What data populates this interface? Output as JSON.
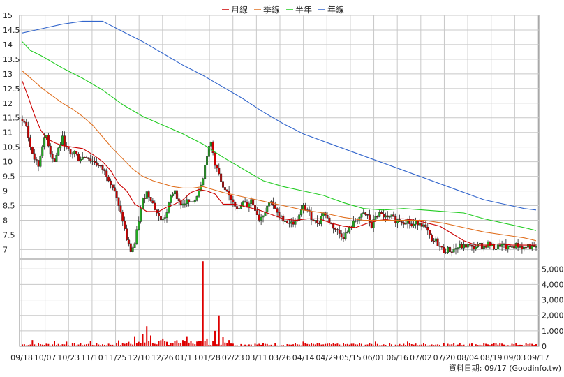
{
  "chart_data": {
    "type": "candlestick",
    "legend": [
      {
        "label": "月線",
        "color": "#cc0000"
      },
      {
        "label": "季線",
        "color": "#e07020"
      },
      {
        "label": "半年",
        "color": "#22cc22"
      },
      {
        "label": "年線",
        "color": "#3366cc"
      }
    ],
    "legend_position": "top",
    "price_ticks": [
      "15",
      "14.5",
      "14",
      "13.5",
      "13",
      "12.5",
      "12",
      "11.5",
      "11",
      "10.5",
      "10",
      "9.5",
      "9",
      "8.5",
      "8",
      "7.5",
      "7"
    ],
    "price_range": [
      6.7,
      15
    ],
    "volume_ticks": [
      "5,000",
      "4,000",
      "3,000",
      "2,000",
      "1,000",
      "0"
    ],
    "volume_range": [
      0,
      5600
    ],
    "x_ticks": [
      "09/18",
      "10/07",
      "10/23",
      "11/10",
      "11/25",
      "12/10",
      "12/26",
      "01/13",
      "01/28",
      "02/23",
      "03/11",
      "03/26",
      "04/14",
      "04/29",
      "05/15",
      "06/01",
      "06/16",
      "07/02",
      "07/20",
      "08/04",
      "08/19",
      "09/03",
      "09/17"
    ],
    "grid": true,
    "footer": "資料日期: 09/17  (Goodinfo.tw)",
    "colors": {
      "up": "#22aa22",
      "down": "#cc0000",
      "volume": "#dd0000",
      "grid": "#c8c8c8"
    },
    "moving_averages": {
      "月線": [
        [
          0,
          12.75
        ],
        [
          3,
          12.2
        ],
        [
          6,
          11.6
        ],
        [
          9,
          11.1
        ],
        [
          12,
          10.8
        ],
        [
          16,
          10.65
        ],
        [
          20,
          10.55
        ],
        [
          25,
          10.5
        ],
        [
          30,
          10.45
        ],
        [
          35,
          10.25
        ],
        [
          40,
          10.0
        ],
        [
          44,
          9.7
        ],
        [
          48,
          9.25
        ],
        [
          52,
          9.0
        ],
        [
          56,
          8.55
        ],
        [
          62,
          8.3
        ],
        [
          68,
          8.3
        ],
        [
          72,
          8.45
        ],
        [
          76,
          8.55
        ],
        [
          80,
          8.7
        ],
        [
          84,
          8.95
        ],
        [
          88,
          9.05
        ],
        [
          92,
          9.0
        ],
        [
          96,
          8.9
        ],
        [
          100,
          8.55
        ],
        [
          106,
          8.55
        ],
        [
          112,
          8.45
        ],
        [
          118,
          8.35
        ],
        [
          124,
          8.2
        ],
        [
          130,
          8.05
        ],
        [
          136,
          8.0
        ],
        [
          142,
          8.05
        ],
        [
          148,
          8.05
        ],
        [
          154,
          7.9
        ],
        [
          160,
          7.8
        ],
        [
          166,
          7.75
        ],
        [
          172,
          7.9
        ],
        [
          178,
          8.0
        ],
        [
          184,
          8.05
        ],
        [
          190,
          8.05
        ],
        [
          196,
          8.0
        ],
        [
          202,
          7.9
        ],
        [
          208,
          7.8
        ],
        [
          214,
          7.55
        ],
        [
          220,
          7.3
        ],
        [
          226,
          7.15
        ],
        [
          232,
          7.15
        ],
        [
          238,
          7.2
        ],
        [
          244,
          7.15
        ],
        [
          250,
          7.15
        ],
        [
          256,
          7.15
        ]
      ],
      "季線": [
        [
          0,
          13.1
        ],
        [
          5,
          12.8
        ],
        [
          10,
          12.5
        ],
        [
          15,
          12.25
        ],
        [
          20,
          12.0
        ],
        [
          25,
          11.8
        ],
        [
          30,
          11.55
        ],
        [
          35,
          11.25
        ],
        [
          40,
          10.85
        ],
        [
          45,
          10.45
        ],
        [
          50,
          10.1
        ],
        [
          55,
          9.75
        ],
        [
          60,
          9.5
        ],
        [
          65,
          9.35
        ],
        [
          70,
          9.25
        ],
        [
          75,
          9.15
        ],
        [
          80,
          9.1
        ],
        [
          85,
          9.1
        ],
        [
          90,
          9.15
        ],
        [
          95,
          9.05
        ],
        [
          100,
          8.95
        ],
        [
          110,
          8.8
        ],
        [
          120,
          8.65
        ],
        [
          130,
          8.5
        ],
        [
          140,
          8.35
        ],
        [
          150,
          8.25
        ],
        [
          160,
          8.1
        ],
        [
          170,
          8.0
        ],
        [
          180,
          8.0
        ],
        [
          190,
          8.0
        ],
        [
          200,
          8.0
        ],
        [
          210,
          7.9
        ],
        [
          220,
          7.75
        ],
        [
          230,
          7.6
        ],
        [
          240,
          7.5
        ],
        [
          250,
          7.4
        ],
        [
          256,
          7.3
        ]
      ],
      "半年": [
        [
          0,
          14.1
        ],
        [
          4,
          13.8
        ],
        [
          10,
          13.6
        ],
        [
          20,
          13.2
        ],
        [
          30,
          12.85
        ],
        [
          40,
          12.45
        ],
        [
          50,
          11.95
        ],
        [
          60,
          11.55
        ],
        [
          70,
          11.25
        ],
        [
          80,
          10.95
        ],
        [
          90,
          10.6
        ],
        [
          100,
          10.15
        ],
        [
          110,
          9.75
        ],
        [
          120,
          9.35
        ],
        [
          130,
          9.15
        ],
        [
          140,
          9.0
        ],
        [
          150,
          8.85
        ],
        [
          160,
          8.6
        ],
        [
          170,
          8.4
        ],
        [
          180,
          8.35
        ],
        [
          190,
          8.4
        ],
        [
          200,
          8.35
        ],
        [
          210,
          8.3
        ],
        [
          220,
          8.25
        ],
        [
          230,
          8.05
        ],
        [
          240,
          7.9
        ],
        [
          250,
          7.75
        ],
        [
          256,
          7.65
        ]
      ],
      "年線": [
        [
          0,
          14.4
        ],
        [
          10,
          14.55
        ],
        [
          20,
          14.7
        ],
        [
          30,
          14.8
        ],
        [
          40,
          14.8
        ],
        [
          50,
          14.45
        ],
        [
          60,
          14.1
        ],
        [
          70,
          13.7
        ],
        [
          80,
          13.3
        ],
        [
          90,
          12.95
        ],
        [
          100,
          12.55
        ],
        [
          110,
          12.15
        ],
        [
          120,
          11.7
        ],
        [
          130,
          11.3
        ],
        [
          140,
          10.95
        ],
        [
          150,
          10.7
        ],
        [
          160,
          10.45
        ],
        [
          170,
          10.2
        ],
        [
          180,
          9.95
        ],
        [
          190,
          9.7
        ],
        [
          200,
          9.45
        ],
        [
          210,
          9.2
        ],
        [
          220,
          8.95
        ],
        [
          230,
          8.7
        ],
        [
          240,
          8.55
        ],
        [
          250,
          8.4
        ],
        [
          256,
          8.35
        ]
      ]
    },
    "price_path": [
      [
        0,
        11.45
      ],
      [
        2,
        11.2
      ],
      [
        4,
        10.5
      ],
      [
        6,
        10.1
      ],
      [
        8,
        9.85
      ],
      [
        10,
        10.6
      ],
      [
        12,
        10.9
      ],
      [
        14,
        10.3
      ],
      [
        16,
        10.0
      ],
      [
        18,
        10.45
      ],
      [
        20,
        10.8
      ],
      [
        22,
        10.45
      ],
      [
        24,
        10.25
      ],
      [
        26,
        10.35
      ],
      [
        28,
        10.1
      ],
      [
        30,
        10.15
      ],
      [
        32,
        10.2
      ],
      [
        34,
        10.05
      ],
      [
        36,
        10.0
      ],
      [
        38,
        9.85
      ],
      [
        40,
        9.75
      ],
      [
        42,
        9.55
      ],
      [
        44,
        9.3
      ],
      [
        46,
        9.0
      ],
      [
        48,
        8.45
      ],
      [
        50,
        8.0
      ],
      [
        52,
        7.35
      ],
      [
        54,
        6.95
      ],
      [
        56,
        7.2
      ],
      [
        58,
        8.0
      ],
      [
        60,
        8.7
      ],
      [
        62,
        8.95
      ],
      [
        64,
        8.75
      ],
      [
        66,
        8.4
      ],
      [
        68,
        8.1
      ],
      [
        70,
        8.0
      ],
      [
        72,
        8.25
      ],
      [
        74,
        8.8
      ],
      [
        76,
        9.05
      ],
      [
        78,
        8.6
      ],
      [
        80,
        8.55
      ],
      [
        82,
        8.65
      ],
      [
        84,
        8.55
      ],
      [
        86,
        8.7
      ],
      [
        88,
        9.05
      ],
      [
        90,
        9.5
      ],
      [
        92,
        10.25
      ],
      [
        94,
        10.65
      ],
      [
        96,
        9.95
      ],
      [
        98,
        9.55
      ],
      [
        100,
        9.05
      ],
      [
        102,
        8.9
      ],
      [
        104,
        8.75
      ],
      [
        106,
        8.55
      ],
      [
        108,
        8.35
      ],
      [
        110,
        8.6
      ],
      [
        112,
        8.5
      ],
      [
        114,
        8.7
      ],
      [
        116,
        8.4
      ],
      [
        118,
        8.05
      ],
      [
        120,
        8.2
      ],
      [
        122,
        8.5
      ],
      [
        124,
        8.7
      ],
      [
        126,
        8.35
      ],
      [
        128,
        8.1
      ],
      [
        130,
        8.05
      ],
      [
        132,
        7.95
      ],
      [
        134,
        7.9
      ],
      [
        136,
        7.95
      ],
      [
        138,
        8.15
      ],
      [
        140,
        8.45
      ],
      [
        142,
        8.35
      ],
      [
        144,
        8.1
      ],
      [
        146,
        7.95
      ],
      [
        148,
        7.95
      ],
      [
        150,
        8.3
      ],
      [
        152,
        8.05
      ],
      [
        154,
        7.85
      ],
      [
        156,
        7.7
      ],
      [
        158,
        7.55
      ],
      [
        160,
        7.45
      ],
      [
        162,
        7.6
      ],
      [
        164,
        7.8
      ],
      [
        166,
        8.0
      ],
      [
        168,
        8.1
      ],
      [
        170,
        8.2
      ],
      [
        172,
        8.15
      ],
      [
        174,
        7.75
      ],
      [
        176,
        8.15
      ],
      [
        178,
        8.2
      ],
      [
        180,
        8.15
      ],
      [
        182,
        8.05
      ],
      [
        184,
        8.1
      ],
      [
        186,
        8.0
      ],
      [
        188,
        8.0
      ],
      [
        190,
        7.95
      ],
      [
        192,
        8.0
      ],
      [
        194,
        7.8
      ],
      [
        196,
        7.9
      ],
      [
        198,
        7.95
      ],
      [
        200,
        7.8
      ],
      [
        202,
        7.6
      ],
      [
        204,
        7.25
      ],
      [
        206,
        7.3
      ],
      [
        208,
        7.1
      ],
      [
        210,
        6.95
      ],
      [
        212,
        7.0
      ],
      [
        214,
        6.95
      ],
      [
        216,
        7.05
      ],
      [
        218,
        7.1
      ],
      [
        220,
        7.1
      ],
      [
        222,
        7.15
      ],
      [
        224,
        7.05
      ],
      [
        226,
        7.1
      ],
      [
        228,
        7.15
      ],
      [
        230,
        7.1
      ],
      [
        232,
        7.2
      ],
      [
        234,
        7.1
      ],
      [
        236,
        7.05
      ],
      [
        238,
        7.15
      ],
      [
        240,
        7.1
      ],
      [
        242,
        7.05
      ],
      [
        244,
        7.1
      ],
      [
        246,
        7.15
      ],
      [
        248,
        7.1
      ],
      [
        250,
        7.05
      ],
      [
        252,
        7.15
      ],
      [
        254,
        7.05
      ],
      [
        256,
        7.05
      ]
    ],
    "volume_spikes": [
      [
        5,
        400
      ],
      [
        16,
        350
      ],
      [
        22,
        300
      ],
      [
        34,
        320
      ],
      [
        48,
        380
      ],
      [
        56,
        650
      ],
      [
        60,
        800
      ],
      [
        62,
        1300
      ],
      [
        64,
        700
      ],
      [
        70,
        500
      ],
      [
        82,
        650
      ],
      [
        89,
        350
      ],
      [
        90,
        5500
      ],
      [
        92,
        500
      ],
      [
        96,
        1000
      ],
      [
        98,
        2000
      ],
      [
        100,
        600
      ],
      [
        103,
        400
      ],
      [
        140,
        300
      ],
      [
        176,
        300
      ],
      [
        192,
        300
      ],
      [
        210,
        200
      ],
      [
        218,
        220
      ],
      [
        230,
        200
      ]
    ]
  }
}
